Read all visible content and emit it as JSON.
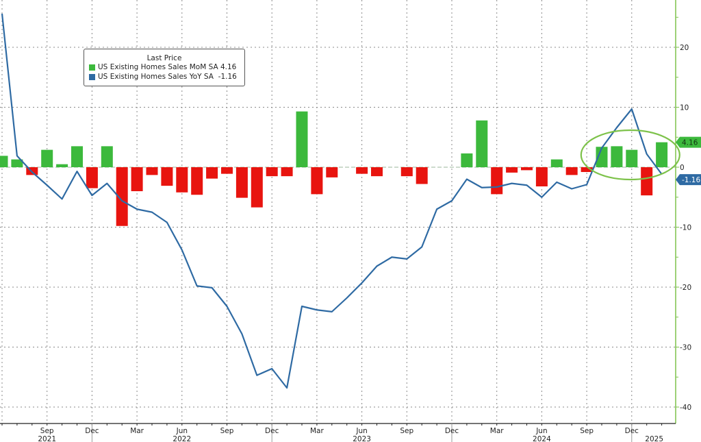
{
  "chart_data": {
    "type": "bar+line",
    "legend": {
      "title": "Last Price",
      "placement": "top-left",
      "entries": [
        {
          "label": "US Existing Homes Sales MoM SA",
          "last": "4.16",
          "color": "#3cb93c"
        },
        {
          "label": "US Existing Homes Sales YoY SA",
          "last": "-1.16",
          "color": "#2e6aa3"
        }
      ]
    },
    "months": [
      "2021-06",
      "2021-07",
      "2021-08",
      "2021-09",
      "2021-10",
      "2021-11",
      "2021-12",
      "2022-01",
      "2022-02",
      "2022-03",
      "2022-04",
      "2022-05",
      "2022-06",
      "2022-07",
      "2022-08",
      "2022-09",
      "2022-10",
      "2022-11",
      "2022-12",
      "2023-01",
      "2023-02",
      "2023-03",
      "2023-04",
      "2023-05",
      "2023-06",
      "2023-07",
      "2023-08",
      "2023-09",
      "2023-10",
      "2023-11",
      "2023-12",
      "2024-01",
      "2024-02",
      "2024-03",
      "2024-04",
      "2024-05",
      "2024-06",
      "2024-07",
      "2024-08",
      "2024-09",
      "2024-10",
      "2024-11",
      "2024-12",
      "2025-01",
      "2025-02"
    ],
    "series": [
      {
        "name": "US Existing Homes Sales MoM SA",
        "type": "bar",
        "positive_color": "#3cb93c",
        "negative_color": "#e8140f",
        "values": [
          1.9,
          1.3,
          -1.3,
          2.9,
          0.5,
          3.5,
          -3.5,
          3.5,
          -9.8,
          -4.0,
          -1.3,
          -3.1,
          -4.2,
          -4.6,
          -1.9,
          -1.1,
          -5.1,
          -6.7,
          -1.5,
          -1.5,
          9.3,
          -4.5,
          -1.7,
          0.0,
          -1.1,
          -1.5,
          0.0,
          -1.5,
          -2.8,
          0.0,
          0.0,
          2.3,
          7.8,
          -4.5,
          -0.9,
          -0.5,
          -3.2,
          1.3,
          -1.3,
          -0.8,
          3.4,
          3.5,
          2.9,
          -4.7,
          4.16
        ]
      },
      {
        "name": "US Existing Homes Sales YoY SA",
        "type": "line",
        "color": "#2e6aa3",
        "values": [
          25.6,
          1.9,
          -0.8,
          -3.0,
          -5.3,
          -0.7,
          -4.7,
          -2.7,
          -5.6,
          -7.0,
          -7.5,
          -9.2,
          -13.8,
          -19.8,
          -20.1,
          -23.2,
          -27.8,
          -34.7,
          -33.6,
          -36.8,
          -23.2,
          -23.8,
          -24.1,
          -21.8,
          -19.3,
          -16.5,
          -15.0,
          -15.3,
          -13.3,
          -7.0,
          -5.6,
          -2.0,
          -3.4,
          -3.3,
          -2.7,
          -3.0,
          -5.0,
          -2.5,
          -3.6,
          -2.9,
          3.2,
          6.6,
          9.7,
          2.2,
          -1.16
        ]
      }
    ],
    "y_axis": {
      "position": "right",
      "ticks": [
        "20",
        "10",
        "0",
        "-10",
        "-20",
        "-30",
        "-40"
      ],
      "tick_values": [
        20,
        10,
        0,
        -10,
        -20,
        -30,
        -40
      ],
      "ylim": [
        -43,
        28
      ]
    },
    "x_axis": {
      "month_labels": [
        {
          "label": "Sep",
          "index": 3
        },
        {
          "label": "Dec",
          "index": 6
        },
        {
          "label": "Mar",
          "index": 9
        },
        {
          "label": "Jun",
          "index": 12
        },
        {
          "label": "Sep",
          "index": 15
        },
        {
          "label": "Dec",
          "index": 18
        },
        {
          "label": "Mar",
          "index": 21
        },
        {
          "label": "Jun",
          "index": 24
        },
        {
          "label": "Sep",
          "index": 27
        },
        {
          "label": "Dec",
          "index": 30
        },
        {
          "label": "Mar",
          "index": 33
        },
        {
          "label": "Jun",
          "index": 36
        },
        {
          "label": "Sep",
          "index": 39
        },
        {
          "label": "Dec",
          "index": 42
        }
      ],
      "year_labels": [
        {
          "label": "2021",
          "index": 3
        },
        {
          "label": "2022",
          "index": 12
        },
        {
          "label": "2023",
          "index": 24
        },
        {
          "label": "2024",
          "index": 36
        },
        {
          "label": "2025",
          "index": 43.5
        }
      ]
    },
    "last_value_tags": [
      {
        "label": "4.16",
        "value": 4.16,
        "color": "#3cb93c"
      },
      {
        "label": "-1.16",
        "value": -1.16,
        "color": "#2e6aa3"
      }
    ],
    "annotation": {
      "type": "ellipse-highlight",
      "from_index": 40,
      "to_index": 44,
      "color": "#7dc24a"
    },
    "grid": true
  }
}
